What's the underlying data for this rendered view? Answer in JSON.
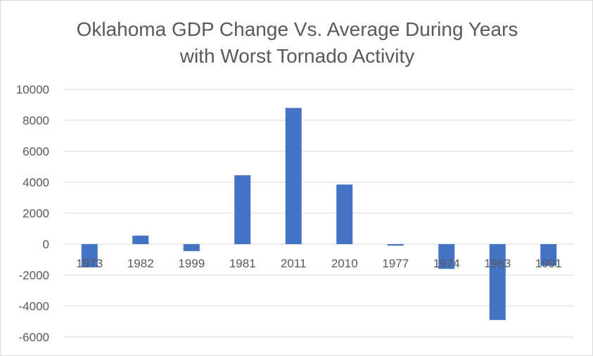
{
  "chart_data": {
    "type": "bar",
    "title_line1": "Oklahoma GDP Change Vs. Average During Years",
    "title_line2": "with Worst Tornado Activity",
    "xlabel": "",
    "ylabel": "",
    "categories": [
      "1973",
      "1982",
      "1999",
      "1981",
      "2011",
      "2010",
      "1977",
      "1974",
      "1983",
      "1991"
    ],
    "values": [
      -1500,
      550,
      -450,
      4450,
      8800,
      3850,
      -100,
      -1600,
      -4900,
      -1400
    ],
    "ylim": [
      -6000,
      10000
    ],
    "yticks": [
      "10000",
      "8000",
      "6000",
      "4000",
      "2000",
      "0",
      "-2000",
      "-4000",
      "-6000"
    ],
    "grid": true,
    "bar_color": "#4472c4",
    "legend": "none"
  }
}
